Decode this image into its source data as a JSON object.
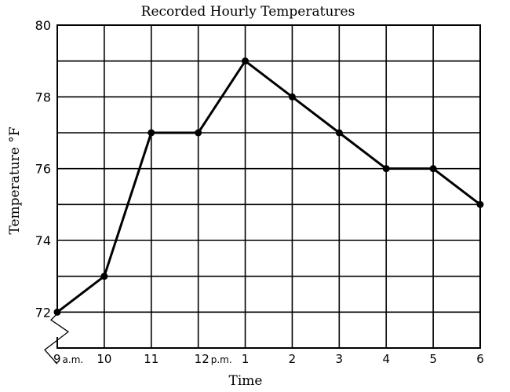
{
  "chart_data": {
    "type": "line",
    "title": "Recorded Hourly Temperatures",
    "xlabel": "Time",
    "ylabel": "Temperature °F",
    "categories": [
      "9 a.m.",
      "10",
      "11",
      "12 p.m.",
      "1",
      "2",
      "3",
      "4",
      "5",
      "6"
    ],
    "x_tick_labels": [
      {
        "main": "9",
        "suffix": "a.m."
      },
      {
        "main": "10",
        "suffix": ""
      },
      {
        "main": "11",
        "suffix": ""
      },
      {
        "main": "12",
        "suffix": "p.m."
      },
      {
        "main": "1",
        "suffix": ""
      },
      {
        "main": "2",
        "suffix": ""
      },
      {
        "main": "3",
        "suffix": ""
      },
      {
        "main": "4",
        "suffix": ""
      },
      {
        "main": "5",
        "suffix": ""
      },
      {
        "main": "6",
        "suffix": ""
      }
    ],
    "series": [
      {
        "values": [
          72,
          73,
          77,
          77,
          79,
          78,
          77,
          76,
          76,
          75
        ]
      }
    ],
    "ylim": [
      71,
      80
    ],
    "axis_break": "below 72",
    "y_ticks": [
      72,
      74,
      76,
      78,
      80
    ],
    "y_minor_step": 1,
    "grid": true,
    "colors": {
      "line": "#000000",
      "grid": "#000000",
      "background": "#ffffff"
    }
  }
}
